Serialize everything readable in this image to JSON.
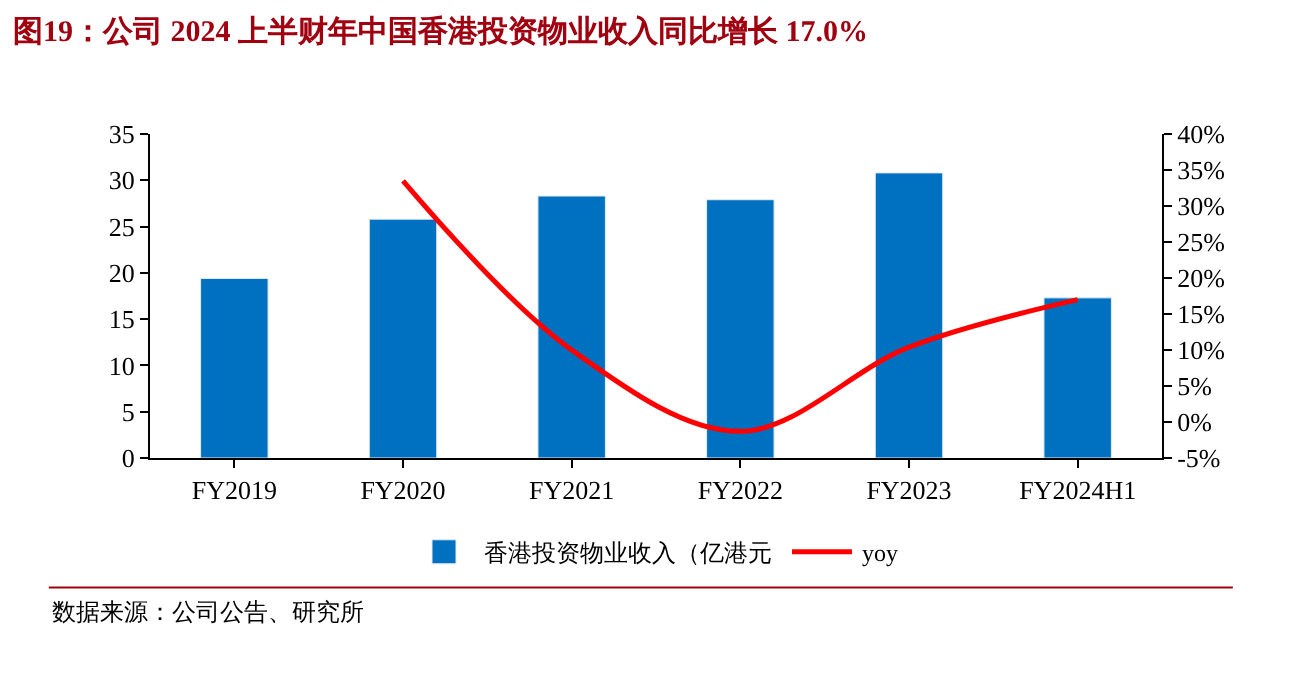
{
  "chart_data": {
    "type": "bar",
    "title": "图19：公司 2024 上半财年中国香港投资物业收入同比增长 17.0%",
    "categories": [
      "FY2019",
      "FY2020",
      "FY2021",
      "FY2022",
      "FY2023",
      "FY2024H1"
    ],
    "series": [
      {
        "name": "香港投资物业收入（亿港元",
        "color": "#0070c0",
        "values": [
          19.4,
          25.8,
          28.3,
          27.9,
          30.8,
          17.3
        ]
      },
      {
        "name": "yoy",
        "type": "line",
        "axis": "y2",
        "color": "#ff0000",
        "values": [
          null,
          33.5,
          10.0,
          -1.3,
          10.4,
          17.0
        ]
      }
    ],
    "ylim": [
      0,
      35
    ],
    "yticks": [
      0,
      5,
      10,
      15,
      20,
      25,
      30,
      35
    ],
    "y2lim": [
      -5,
      40
    ],
    "y2ticks": [
      {
        "value": -5,
        "label": "-5%"
      },
      {
        "value": 0,
        "label": "0%"
      },
      {
        "value": 5,
        "label": "5%"
      },
      {
        "value": 10,
        "label": "10%"
      },
      {
        "value": 15,
        "label": "15%"
      },
      {
        "value": 20,
        "label": "20%"
      },
      {
        "value": 25,
        "label": "25%"
      },
      {
        "value": 30,
        "label": "30%"
      },
      {
        "value": 35,
        "label": "35%"
      },
      {
        "value": 40,
        "label": "40%"
      }
    ],
    "legend": "bottom",
    "marker": "none",
    "line_style": "solid",
    "annotations": [
      "数据来源：公司公告、研究所"
    ]
  }
}
